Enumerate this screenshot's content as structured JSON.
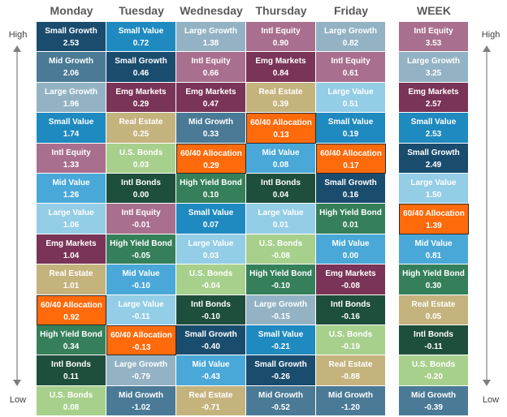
{
  "labels": {
    "high": "High",
    "low": "Low"
  },
  "colors": {
    "Small Growth": "#1a4c6e",
    "Mid Growth": "#4a7a96",
    "Large Growth": "#93b3c4",
    "Small Value": "#1f8ac0",
    "Mid Value": "#4aa8d8",
    "Large Value": "#94cde6",
    "Intl Equity": "#a96f8e",
    "Emg Markets": "#7a3457",
    "Real Estate": "#c5b37e",
    "U.S. Bonds": "#a7d08c",
    "Intl Bonds": "#1e4e3c",
    "High Yield Bond": "#35805a",
    "60/40 Allocation": "#ff6a0a"
  },
  "chart_data": {
    "type": "table",
    "columns": [
      {
        "header": "Monday",
        "rows": [
          {
            "name": "Small Growth",
            "value": "2.53"
          },
          {
            "name": "Mid Growth",
            "value": "2.06"
          },
          {
            "name": "Large Growth",
            "value": "1.96"
          },
          {
            "name": "Small Value",
            "value": "1.74"
          },
          {
            "name": "Intl Equity",
            "value": "1.33"
          },
          {
            "name": "Mid Value",
            "value": "1.26"
          },
          {
            "name": "Large Value",
            "value": "1.06"
          },
          {
            "name": "Emg Markets",
            "value": "1.04"
          },
          {
            "name": "Real Estate",
            "value": "1.01"
          },
          {
            "name": "60/40 Allocation",
            "value": "0.92"
          },
          {
            "name": "High Yield Bond",
            "value": "0.34"
          },
          {
            "name": "Intl Bonds",
            "value": "0.11"
          },
          {
            "name": "U.S. Bonds",
            "value": "0.08"
          }
        ]
      },
      {
        "header": "Tuesday",
        "rows": [
          {
            "name": "Small Value",
            "value": "0.72"
          },
          {
            "name": "Small Growth",
            "value": "0.46"
          },
          {
            "name": "Emg Markets",
            "value": "0.29"
          },
          {
            "name": "Real Estate",
            "value": "0.25"
          },
          {
            "name": "U.S. Bonds",
            "value": "0.03"
          },
          {
            "name": "Intl Bonds",
            "value": "0.00"
          },
          {
            "name": "Intl Equity",
            "value": "-0.01"
          },
          {
            "name": "High Yield Bond",
            "value": "-0.05"
          },
          {
            "name": "Mid Value",
            "value": "-0.10"
          },
          {
            "name": "Large Value",
            "value": "-0.11"
          },
          {
            "name": "60/40 Allocation",
            "value": "-0.13"
          },
          {
            "name": "Large Growth",
            "value": "-0.79"
          },
          {
            "name": "Mid Growth",
            "value": "-1.02"
          }
        ]
      },
      {
        "header": "Wednesday",
        "rows": [
          {
            "name": "Large Growth",
            "value": "1.38"
          },
          {
            "name": "Intl Equity",
            "value": "0.66"
          },
          {
            "name": "Emg Markets",
            "value": "0.47"
          },
          {
            "name": "Mid Growth",
            "value": "0.33"
          },
          {
            "name": "60/40 Allocation",
            "value": "0.29"
          },
          {
            "name": "High Yield Bond",
            "value": "0.10"
          },
          {
            "name": "Small Value",
            "value": "0.07"
          },
          {
            "name": "Large Value",
            "value": "0.03"
          },
          {
            "name": "U.S. Bonds",
            "value": "-0.04"
          },
          {
            "name": "Intl Bonds",
            "value": "-0.10"
          },
          {
            "name": "Small Growth",
            "value": "-0.40"
          },
          {
            "name": "Mid Value",
            "value": "-0.43"
          },
          {
            "name": "Real Estate",
            "value": "-0.71"
          }
        ]
      },
      {
        "header": "Thursday",
        "rows": [
          {
            "name": "Intl Equity",
            "value": "0.90"
          },
          {
            "name": "Emg Markets",
            "value": "0.84"
          },
          {
            "name": "Real Estate",
            "value": "0.39"
          },
          {
            "name": "60/40 Allocation",
            "value": "0.13"
          },
          {
            "name": "Mid Value",
            "value": "0.08"
          },
          {
            "name": "Intl Bonds",
            "value": "0.04"
          },
          {
            "name": "Large Value",
            "value": "0.01"
          },
          {
            "name": "U.S. Bonds",
            "value": "-0.08"
          },
          {
            "name": "High Yield Bond",
            "value": "-0.10"
          },
          {
            "name": "Large Growth",
            "value": "-0.15"
          },
          {
            "name": "Small Value",
            "value": "-0.21"
          },
          {
            "name": "Small Growth",
            "value": "-0.26"
          },
          {
            "name": "Mid Growth",
            "value": "-0.52"
          }
        ]
      },
      {
        "header": "Friday",
        "rows": [
          {
            "name": "Large Growth",
            "value": "0.82"
          },
          {
            "name": "Intl Equity",
            "value": "0.61"
          },
          {
            "name": "Large Value",
            "value": "0.51"
          },
          {
            "name": "Small Value",
            "value": "0.19"
          },
          {
            "name": "60/40 Allocation",
            "value": "0.17"
          },
          {
            "name": "Small Growth",
            "value": "0.16"
          },
          {
            "name": "High Yield Bond",
            "value": "0.01"
          },
          {
            "name": "Mid Value",
            "value": "0.00"
          },
          {
            "name": "Emg Markets",
            "value": "-0.08"
          },
          {
            "name": "Intl Bonds",
            "value": "-0.16"
          },
          {
            "name": "U.S. Bonds",
            "value": "-0.19"
          },
          {
            "name": "Real Estate",
            "value": "-0.88"
          },
          {
            "name": "Mid Growth",
            "value": "-1.20"
          }
        ]
      },
      {
        "header": "WEEK",
        "rows": [
          {
            "name": "Intl Equity",
            "value": "3.53"
          },
          {
            "name": "Large Growth",
            "value": "3.25"
          },
          {
            "name": "Emg Markets",
            "value": "2.57"
          },
          {
            "name": "Small Value",
            "value": "2.53"
          },
          {
            "name": "Small Growth",
            "value": "2.49"
          },
          {
            "name": "Large Value",
            "value": "1.50"
          },
          {
            "name": "60/40 Allocation",
            "value": "1.39"
          },
          {
            "name": "Mid Value",
            "value": "0.81"
          },
          {
            "name": "High Yield Bond",
            "value": "0.30"
          },
          {
            "name": "Real Estate",
            "value": "0.05"
          },
          {
            "name": "Intl Bonds",
            "value": "-0.11"
          },
          {
            "name": "U.S. Bonds",
            "value": "-0.20"
          },
          {
            "name": "Mid Growth",
            "value": "-0.39"
          }
        ]
      }
    ]
  }
}
